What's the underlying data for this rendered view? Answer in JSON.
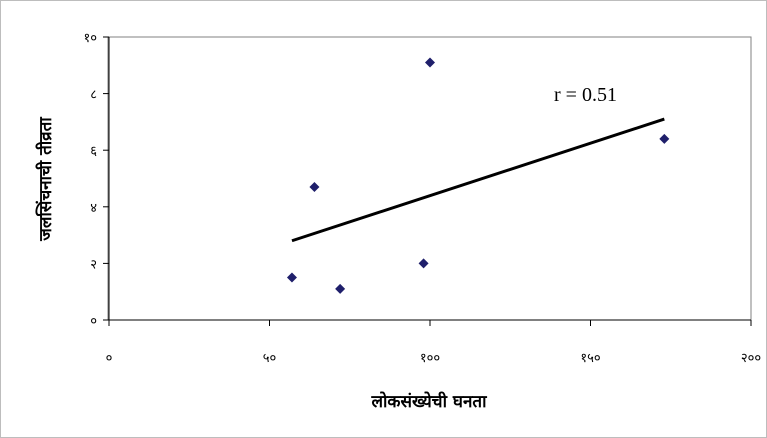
{
  "chart_data": {
    "type": "scatter",
    "title": "",
    "xlabel": "लोकसंख्येची घनता",
    "ylabel": "जलसिंचनाची तीव्रता",
    "xlim": [
      0,
      200
    ],
    "ylim": [
      0,
      10
    ],
    "x_ticks": [
      0,
      50,
      100,
      150,
      200
    ],
    "y_ticks": [
      0,
      2,
      4,
      6,
      8,
      10
    ],
    "x_tick_labels": [
      "०",
      "५०",
      "१००",
      "१५०",
      "२००"
    ],
    "y_tick_labels": [
      "०",
      "२",
      "४",
      "६",
      "८",
      "१०"
    ],
    "grid": false,
    "legend": "none",
    "marker_color": "#1f1f6b",
    "line_color": "#000000",
    "points": [
      {
        "x": 57,
        "y": 1.5
      },
      {
        "x": 64,
        "y": 4.7
      },
      {
        "x": 72,
        "y": 1.1
      },
      {
        "x": 98,
        "y": 2.0
      },
      {
        "x": 100,
        "y": 9.1
      },
      {
        "x": 173,
        "y": 6.4
      }
    ],
    "trendline": {
      "x": [
        57,
        173
      ],
      "y": [
        2.8,
        7.1
      ]
    },
    "annotation": "r = 0.51"
  }
}
